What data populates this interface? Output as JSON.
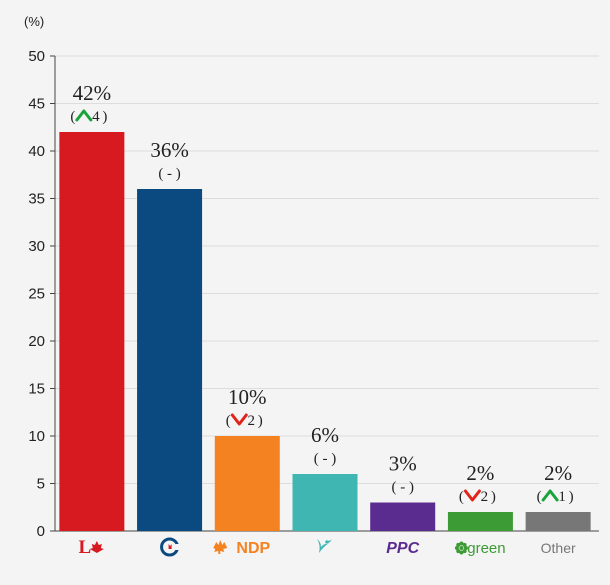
{
  "chart_data": {
    "type": "bar",
    "unit_label": "(%)",
    "ylim": [
      0,
      50
    ],
    "yticks": [
      0,
      5,
      10,
      15,
      20,
      25,
      30,
      35,
      40,
      45,
      50
    ],
    "grid": true,
    "categories": [
      "Liberal",
      "Conservative",
      "NDP",
      "Bloc Québécois",
      "PPC",
      "Green",
      "Other"
    ],
    "values": [
      42,
      36,
      10,
      6,
      3,
      2,
      2
    ],
    "value_labels": [
      "42%",
      "36%",
      "10%",
      "6%",
      "3%",
      "2%",
      "2%"
    ],
    "changes": [
      {
        "direction": "up",
        "amount": "4"
      },
      {
        "direction": "none",
        "amount": "-"
      },
      {
        "direction": "down",
        "amount": "2"
      },
      {
        "direction": "none",
        "amount": "-"
      },
      {
        "direction": "none",
        "amount": "-"
      },
      {
        "direction": "down",
        "amount": "2"
      },
      {
        "direction": "up",
        "amount": "1"
      }
    ],
    "colors": [
      "#d71920",
      "#0b4a80",
      "#f58220",
      "#3fb6b2",
      "#5b2c8f",
      "#3d9b35",
      "#777777"
    ],
    "change_colors": {
      "up": "#19a33a",
      "down": "#e2231a"
    },
    "x_labels": [
      {
        "icon": "liberal-logo-icon",
        "text": "",
        "color": "#d71920"
      },
      {
        "icon": "conservative-logo-icon",
        "text": "",
        "color": "#0b4a80"
      },
      {
        "icon": "ndp-logo-icon",
        "text": "NDP",
        "color": "#f58220"
      },
      {
        "icon": "bloc-logo-icon",
        "text": "",
        "color": "#3fb6b2"
      },
      {
        "icon": "ppc-logo-icon",
        "text": "PPC",
        "color": "#5b2c8f"
      },
      {
        "icon": "green-logo-icon",
        "text": "green",
        "color": "#3d9b35"
      },
      {
        "icon": "",
        "text": "Other",
        "color": "#777777"
      }
    ]
  }
}
